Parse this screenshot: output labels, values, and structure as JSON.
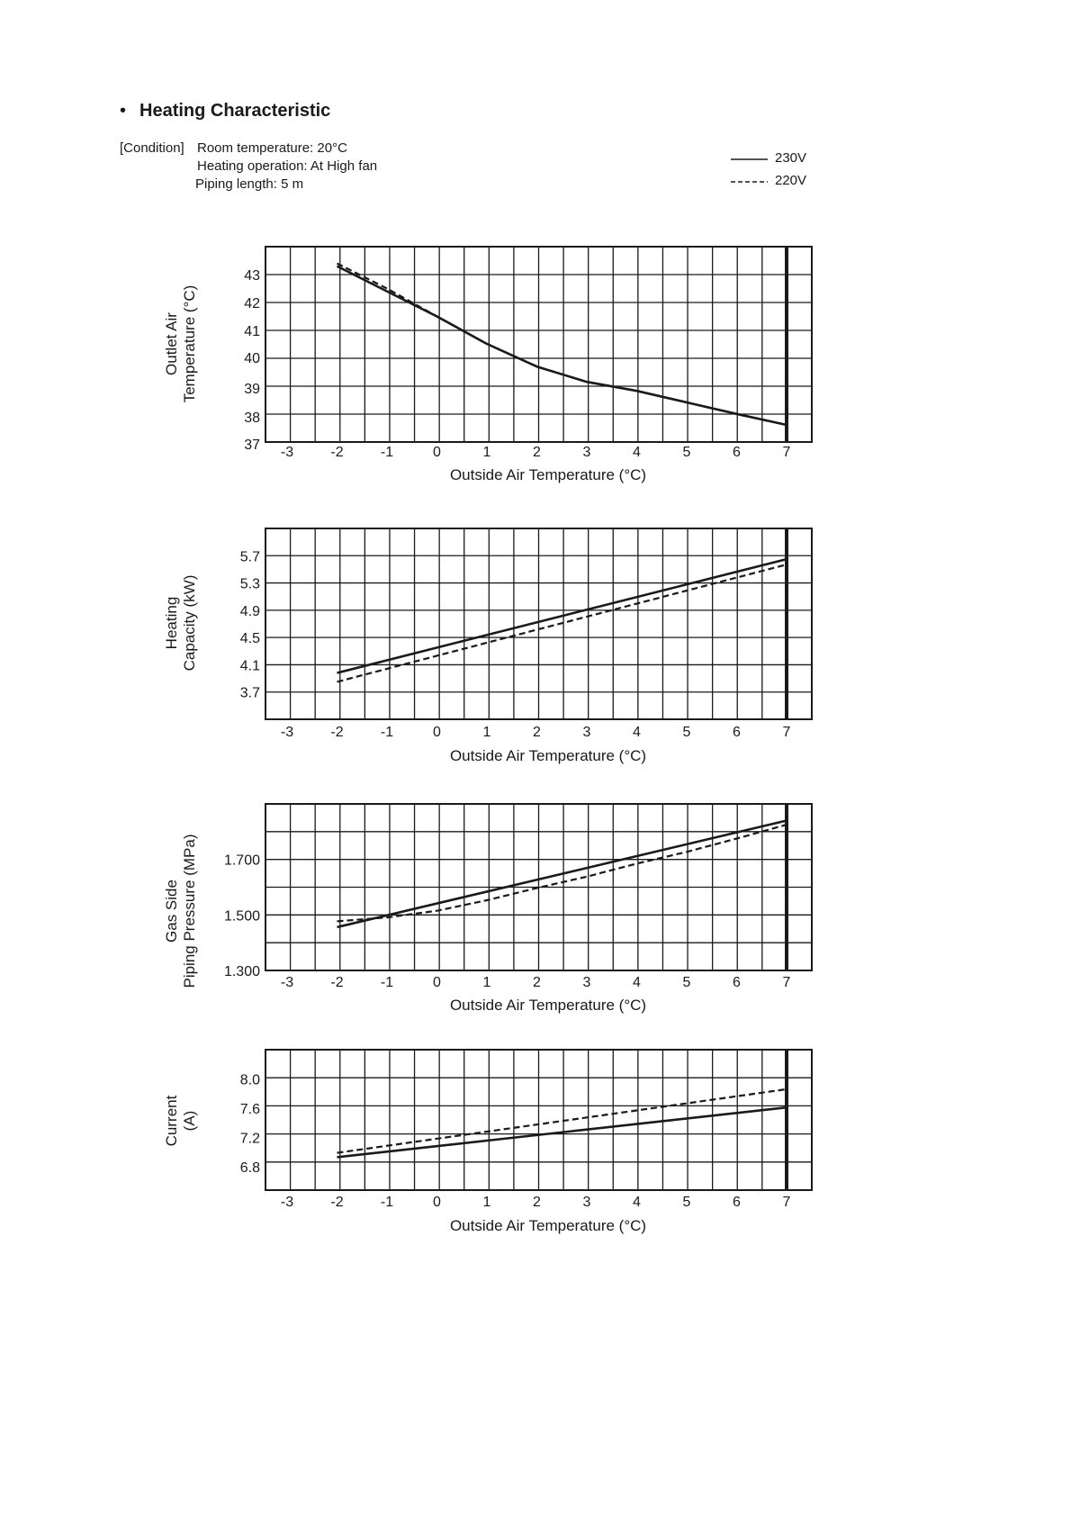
{
  "header": {
    "bullet": "•",
    "title": "Heating Characteristic"
  },
  "conditions": {
    "tag": "[Condition]",
    "room": "Room temperature: 20°C",
    "operation": "Heating operation: At High fan",
    "piping": "Piping length:  5 m"
  },
  "legend": [
    {
      "label": "230V",
      "style": "solid"
    },
    {
      "label": "220V",
      "style": "dashed"
    }
  ],
  "chart_data": [
    {
      "type": "line",
      "xlabel": "Outside Air Temperature (°C)",
      "ylabel": [
        "Outlet Air",
        "Temperature (°C)"
      ],
      "x_ticks": [
        "-3",
        "-2",
        "-1",
        "0",
        "1",
        "2",
        "3",
        "4",
        "5",
        "6",
        "7"
      ],
      "y_ticks": [
        "43",
        "42",
        "41",
        "40",
        "39",
        "38",
        "37"
      ],
      "y_tick_values": [
        43,
        42,
        41,
        40,
        39,
        38,
        37
      ],
      "xlim": [
        -3.4,
        7.5
      ],
      "ylim": [
        37,
        44
      ],
      "grid": true,
      "series": [
        {
          "name": "230V",
          "style": "solid",
          "x": [
            -2,
            -1,
            0,
            1,
            2,
            3,
            4,
            5,
            6,
            7
          ],
          "y": [
            43.3,
            42.4,
            41.5,
            40.5,
            39.7,
            39.2,
            38.9,
            38.5,
            38.1,
            37.7
          ]
        },
        {
          "name": "220V",
          "style": "dashed",
          "x": [
            -2,
            -1,
            0,
            1,
            2,
            3,
            4,
            5,
            6,
            7
          ],
          "y": [
            43.4,
            42.5,
            41.5,
            40.5,
            39.7,
            39.2,
            38.9,
            38.5,
            38.1,
            37.7
          ]
        }
      ]
    },
    {
      "type": "line",
      "xlabel": "Outside Air Temperature (°C)",
      "ylabel": [
        "Heating",
        "Capacity (kW)"
      ],
      "x_ticks": [
        "-3",
        "-2",
        "-1",
        "0",
        "1",
        "2",
        "3",
        "4",
        "5",
        "6",
        "7"
      ],
      "y_ticks": [
        "5.7",
        "5.3",
        "4.9",
        "4.5",
        "4.1",
        "3.7"
      ],
      "y_tick_values": [
        5.7,
        5.3,
        4.9,
        4.5,
        4.1,
        3.7
      ],
      "xlim": [
        -3.4,
        7.5
      ],
      "ylim": [
        3.3,
        6.1
      ],
      "grid": true,
      "series": [
        {
          "name": "230V",
          "style": "solid",
          "x": [
            -2,
            7
          ],
          "y": [
            3.98,
            5.65
          ]
        },
        {
          "name": "220V",
          "style": "dashed",
          "x": [
            -2,
            7
          ],
          "y": [
            3.85,
            5.57
          ]
        }
      ]
    },
    {
      "type": "line",
      "xlabel": "Outside Air Temperature (°C)",
      "ylabel": [
        "Gas Side",
        "Piping Pressure (MPa)"
      ],
      "x_ticks": [
        "-3",
        "-2",
        "-1",
        "0",
        "1",
        "2",
        "3",
        "4",
        "5",
        "6",
        "7"
      ],
      "y_ticks": [
        "1.700",
        "1.500",
        "1.300"
      ],
      "y_tick_values": [
        1.7,
        1.5,
        1.3
      ],
      "xlim": [
        -3.4,
        7.5
      ],
      "ylim": [
        1.3,
        1.9
      ],
      "grid": true,
      "series": [
        {
          "name": "230V",
          "style": "solid",
          "x": [
            -2,
            7
          ],
          "y": [
            1.456,
            1.84
          ]
        },
        {
          "name": "220V",
          "style": "dashed",
          "x": [
            -2,
            -1,
            0,
            1,
            2,
            3,
            4,
            5,
            6,
            7
          ],
          "y": [
            1.477,
            1.491,
            1.515,
            1.553,
            1.597,
            1.638,
            1.685,
            1.727,
            1.775,
            1.825
          ]
        }
      ]
    },
    {
      "type": "line",
      "xlabel": "Outside Air Temperature (°C)",
      "ylabel": [
        "Current",
        "(A)"
      ],
      "x_ticks": [
        "-3",
        "-2",
        "-1",
        "0",
        "1",
        "2",
        "3",
        "4",
        "5",
        "6",
        "7"
      ],
      "y_ticks": [
        "8.0",
        "7.6",
        "7.2",
        "6.8"
      ],
      "y_tick_values": [
        8.0,
        7.6,
        7.2,
        6.8
      ],
      "xlim": [
        -3.4,
        7.5
      ],
      "ylim": [
        6.48,
        8.4
      ],
      "grid": true,
      "series": [
        {
          "name": "230V",
          "style": "solid",
          "x": [
            -2,
            7
          ],
          "y": [
            6.93,
            7.61
          ]
        },
        {
          "name": "220V",
          "style": "dashed",
          "x": [
            -2,
            7
          ],
          "y": [
            6.99,
            7.86
          ]
        }
      ]
    }
  ]
}
